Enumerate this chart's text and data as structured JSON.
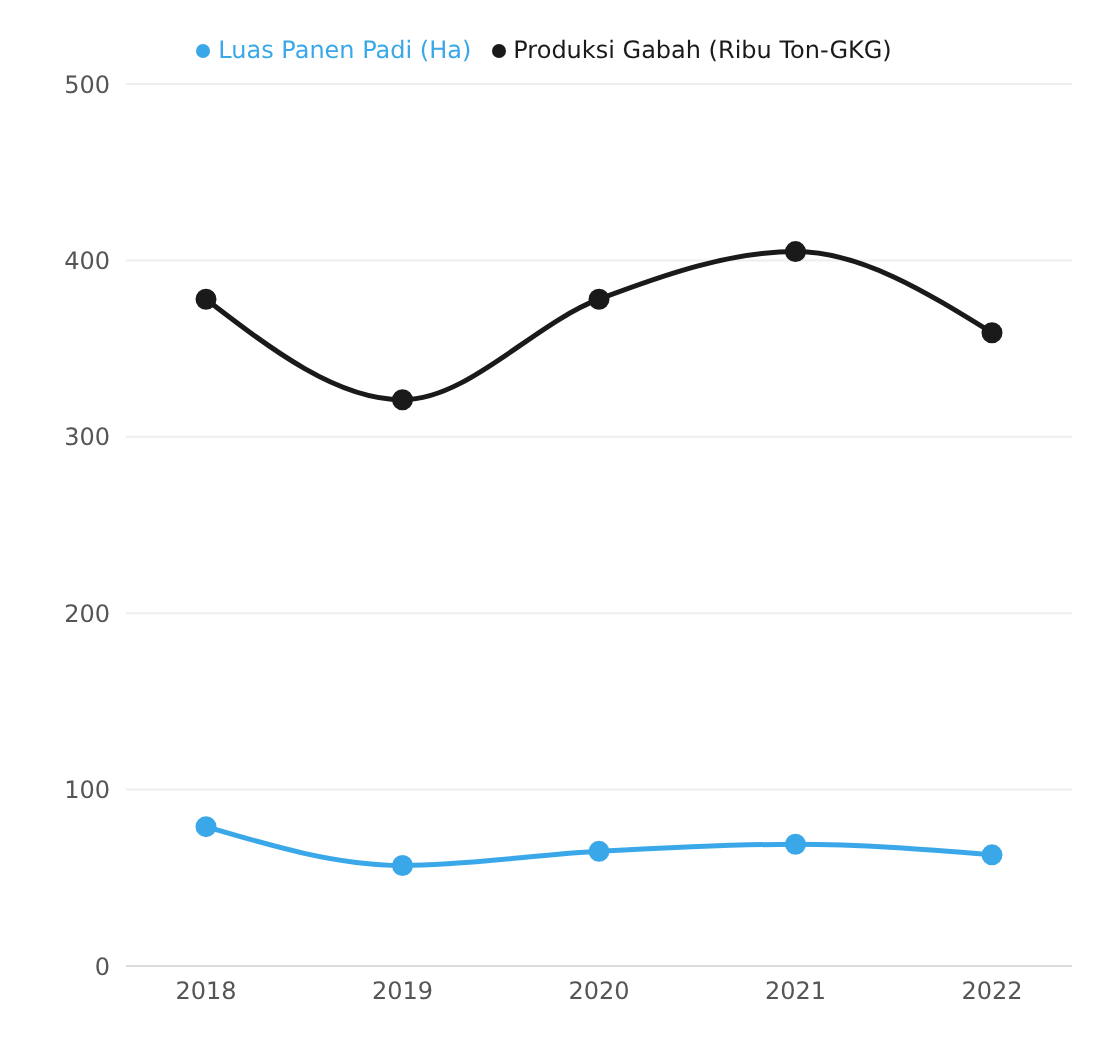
{
  "chart_data": {
    "type": "line",
    "categories": [
      "2018",
      "2019",
      "2020",
      "2021",
      "2022"
    ],
    "series": [
      {
        "name": "Produksi Gabah (Ribu Ton-GKG)",
        "color": "#1a1a1a",
        "values": [
          378,
          321,
          378,
          405,
          359
        ]
      },
      {
        "name": "Luas Panen Padi (Ha)",
        "color": "#3aa8e8",
        "values": [
          79,
          57,
          65,
          69,
          63
        ]
      }
    ],
    "ylim": [
      0,
      500
    ],
    "yticks": [
      0,
      100,
      200,
      300,
      400,
      500
    ],
    "grid": "y",
    "legend": "top",
    "marker": "circle",
    "line_style": "solid"
  }
}
